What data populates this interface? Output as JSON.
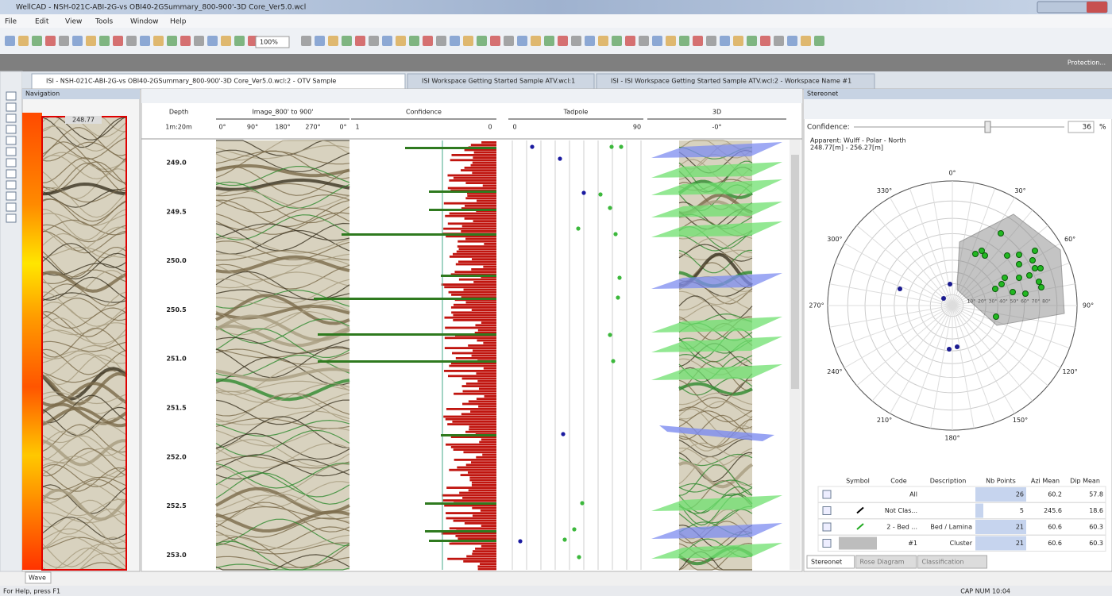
{
  "window": {
    "title": "WellCAD - NSH-021C-ABI-2G-vs OBI40-2GSummary_800-900'-3D Core_Ver5.0.wcl",
    "protection": "Protection..."
  },
  "menu": [
    "File",
    "Edit",
    "View",
    "Tools",
    "Window",
    "Help"
  ],
  "toolbar": {
    "zoom": "100%"
  },
  "tabs": [
    "ISI - NSH-021C-ABI-2G-vs OBI40-2GSummary_800-900'-3D Core_Ver5.0.wcl:2 - OTV Sample",
    "ISI Workspace Getting Started Sample ATV.wcl:1",
    "ISI - ISI Workspace Getting Started Sample ATV.wcl:2 - Workspace Name #1"
  ],
  "navigation": {
    "title": "Navigation",
    "depth": "248.77",
    "tab": "Wave"
  },
  "log": {
    "headers": [
      {
        "title": "Depth",
        "scale": [
          "1m:20m"
        ]
      },
      {
        "title": "Image_800' to 900'",
        "scale": [
          "0°",
          "90°",
          "180°",
          "270°",
          "0°"
        ]
      },
      {
        "title": "Confidence",
        "scale": [
          "1",
          "0"
        ]
      },
      {
        "title": "Tadpole",
        "scale": [
          "0",
          "90"
        ]
      },
      {
        "title": "3D",
        "scale": [
          "-0°"
        ]
      }
    ],
    "depths": [
      "249.0",
      "249.5",
      "250.0",
      "250.5",
      "251.0",
      "251.5",
      "252.0",
      "252.5",
      "253.0"
    ]
  },
  "stereonet": {
    "title": "Stereonet",
    "confidence_label": "Confidence:",
    "confidence_value": "36",
    "confidence_unit": "%",
    "projection": "Apparent: Wulff - Polar - North",
    "range": "248.77[m] - 256.27[m]",
    "azimuths": [
      "0°",
      "30°",
      "60°",
      "90°",
      "120°",
      "150°",
      "180°",
      "210°",
      "240°",
      "270°",
      "300°",
      "330°"
    ],
    "dips": [
      "10°",
      "20°",
      "30°",
      "40°",
      "50°",
      "60°",
      "70°",
      "80°"
    ],
    "table": {
      "columns": [
        "Symbol",
        "Code",
        "Description",
        "Nb Points",
        "Azi Mean",
        "Dip Mean"
      ],
      "rows": [
        {
          "code": "All",
          "points": "26",
          "azi": "60.2",
          "dip": "57.8"
        },
        {
          "code": "Not Clas...",
          "points": "5",
          "azi": "245.6",
          "dip": "18.6"
        },
        {
          "code": "2 - Bed ...",
          "description": "Bed / Lamina",
          "points": "21",
          "azi": "60.6",
          "dip": "60.3"
        },
        {
          "code": "#1",
          "description": "Cluster",
          "points": "21",
          "azi": "60.6",
          "dip": "60.3"
        }
      ]
    },
    "tabs": [
      "Stereonet",
      "Rose Diagram",
      "Classification"
    ]
  },
  "status": {
    "help": "For Help, press F1",
    "indicators": "CAP NUM 10:04"
  }
}
